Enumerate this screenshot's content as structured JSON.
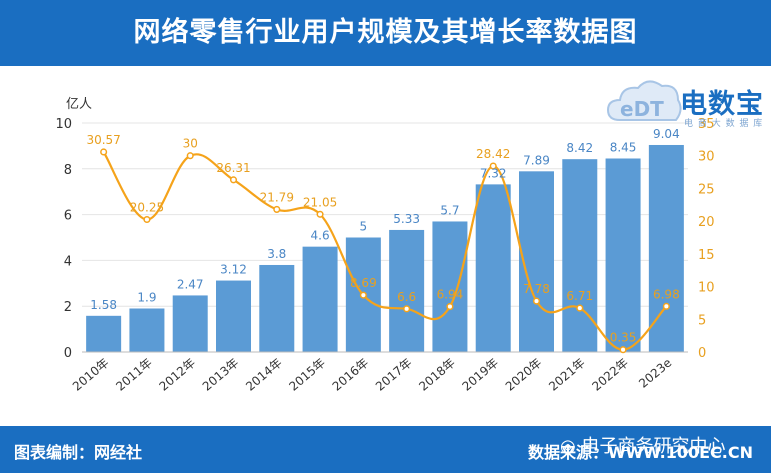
{
  "title": "网络零售行业用户规模及其增长率数据图",
  "footer": {
    "left": "图表编制：网经社",
    "right": "数据来源：WWW.100EC.CN",
    "wechat": "电子商务研究中心"
  },
  "logo": {
    "name": "电数宝",
    "sub": "电 商 大 数 据 库",
    "emblem": "eDT"
  },
  "colors": {
    "header": "#1a6ec1",
    "bar": "#5b9bd5",
    "line": "#f5a31a",
    "bar_label": "#4a86c5",
    "line_label": "#e8a020"
  },
  "chart_data": {
    "type": "bar",
    "categories": [
      "2010年",
      "2011年",
      "2012年",
      "2013年",
      "2014年",
      "2015年",
      "2016年",
      "2017年",
      "2018年",
      "2019年",
      "2020年",
      "2021年",
      "2022年",
      "2023e"
    ],
    "series": [
      {
        "type": "bar",
        "axis": "left",
        "values": [
          1.58,
          1.9,
          2.47,
          3.12,
          3.8,
          4.6,
          5,
          5.33,
          5.7,
          7.32,
          7.89,
          8.42,
          8.45,
          9.04
        ]
      },
      {
        "type": "line",
        "axis": "right",
        "values": [
          30.57,
          20.25,
          30,
          26.31,
          21.79,
          21.05,
          8.69,
          6.6,
          6.94,
          28.42,
          7.78,
          6.71,
          0.35,
          6.98
        ]
      }
    ],
    "ylabel": "亿人",
    "ylim": [
      0,
      10
    ],
    "y_ticks": [
      0,
      2,
      4,
      6,
      8,
      10
    ],
    "y2lim": [
      0,
      35
    ],
    "y2_ticks": [
      0,
      5,
      10,
      15,
      20,
      25,
      30,
      35
    ],
    "grid": true
  }
}
